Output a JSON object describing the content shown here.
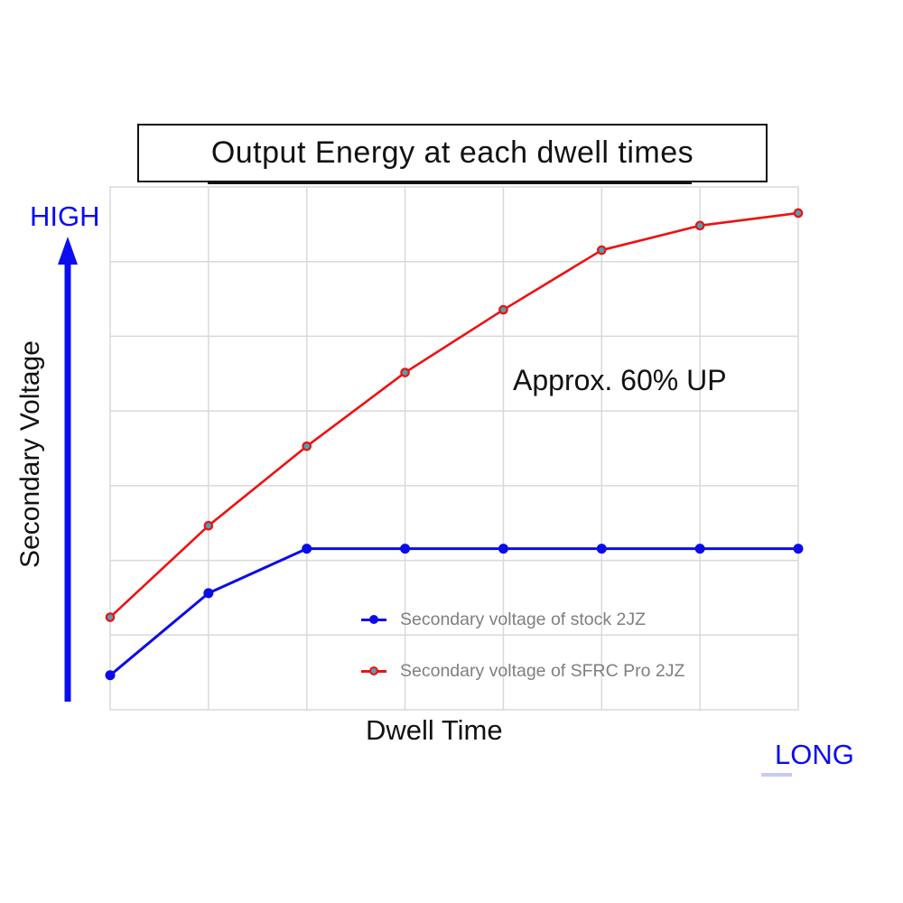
{
  "title": "Output Energy at each dwell times",
  "annotation": "Approx. 60% UP",
  "axes": {
    "y_label": "Secondary Voltage",
    "y_high": "HIGH",
    "x_label": "Dwell Time",
    "x_long": "LONG"
  },
  "legend": {
    "position": "inside-bottom-center",
    "items": [
      {
        "label": "Secondary voltage of stock 2JZ",
        "color": "#0b0bec"
      },
      {
        "label": "Secondary voltage of SFRC Pro 2JZ",
        "color": "#ee1111"
      }
    ]
  },
  "colors": {
    "blue": "#0b0bec",
    "red": "#ee1111",
    "red_marker_fill": "#4aa3b5",
    "grid": "#d9d9d9",
    "legend_text": "#7f7f7f",
    "text": "#111111"
  },
  "chart_data": {
    "type": "line",
    "x": [
      1,
      2,
      3,
      4,
      5,
      6,
      7,
      8
    ],
    "xlabel": "Dwell Time (qualitative, short to LONG)",
    "ylabel": "Secondary Voltage (qualitative, low to HIGH)",
    "ylim": [
      0,
      100
    ],
    "grid": true,
    "grid_divisions": {
      "x": 7,
      "y": 7
    },
    "annotations": [
      "Approx. 60% UP"
    ],
    "series": [
      {
        "name": "Secondary voltage of stock 2JZ",
        "color": "#0b0bec",
        "line_width": 3,
        "marker": {
          "shape": "circle",
          "radius": 5.5,
          "fill": "#0b0bec",
          "stroke": "#0b0bec",
          "stroke_width": 0
        },
        "values": [
          6.6,
          22.3,
          30.8,
          30.8,
          30.8,
          30.8,
          30.8,
          30.8
        ]
      },
      {
        "name": "Secondary voltage of SFRC Pro 2JZ",
        "color": "#ee1111",
        "line_width": 2.6,
        "marker": {
          "shape": "circle",
          "radius": 4.2,
          "fill": "#4aa3b5",
          "stroke": "#ee1111",
          "stroke_width": 2.2
        },
        "values": [
          17.7,
          35.2,
          50.4,
          64.5,
          76.5,
          87.9,
          92.6,
          95.0
        ]
      }
    ]
  }
}
